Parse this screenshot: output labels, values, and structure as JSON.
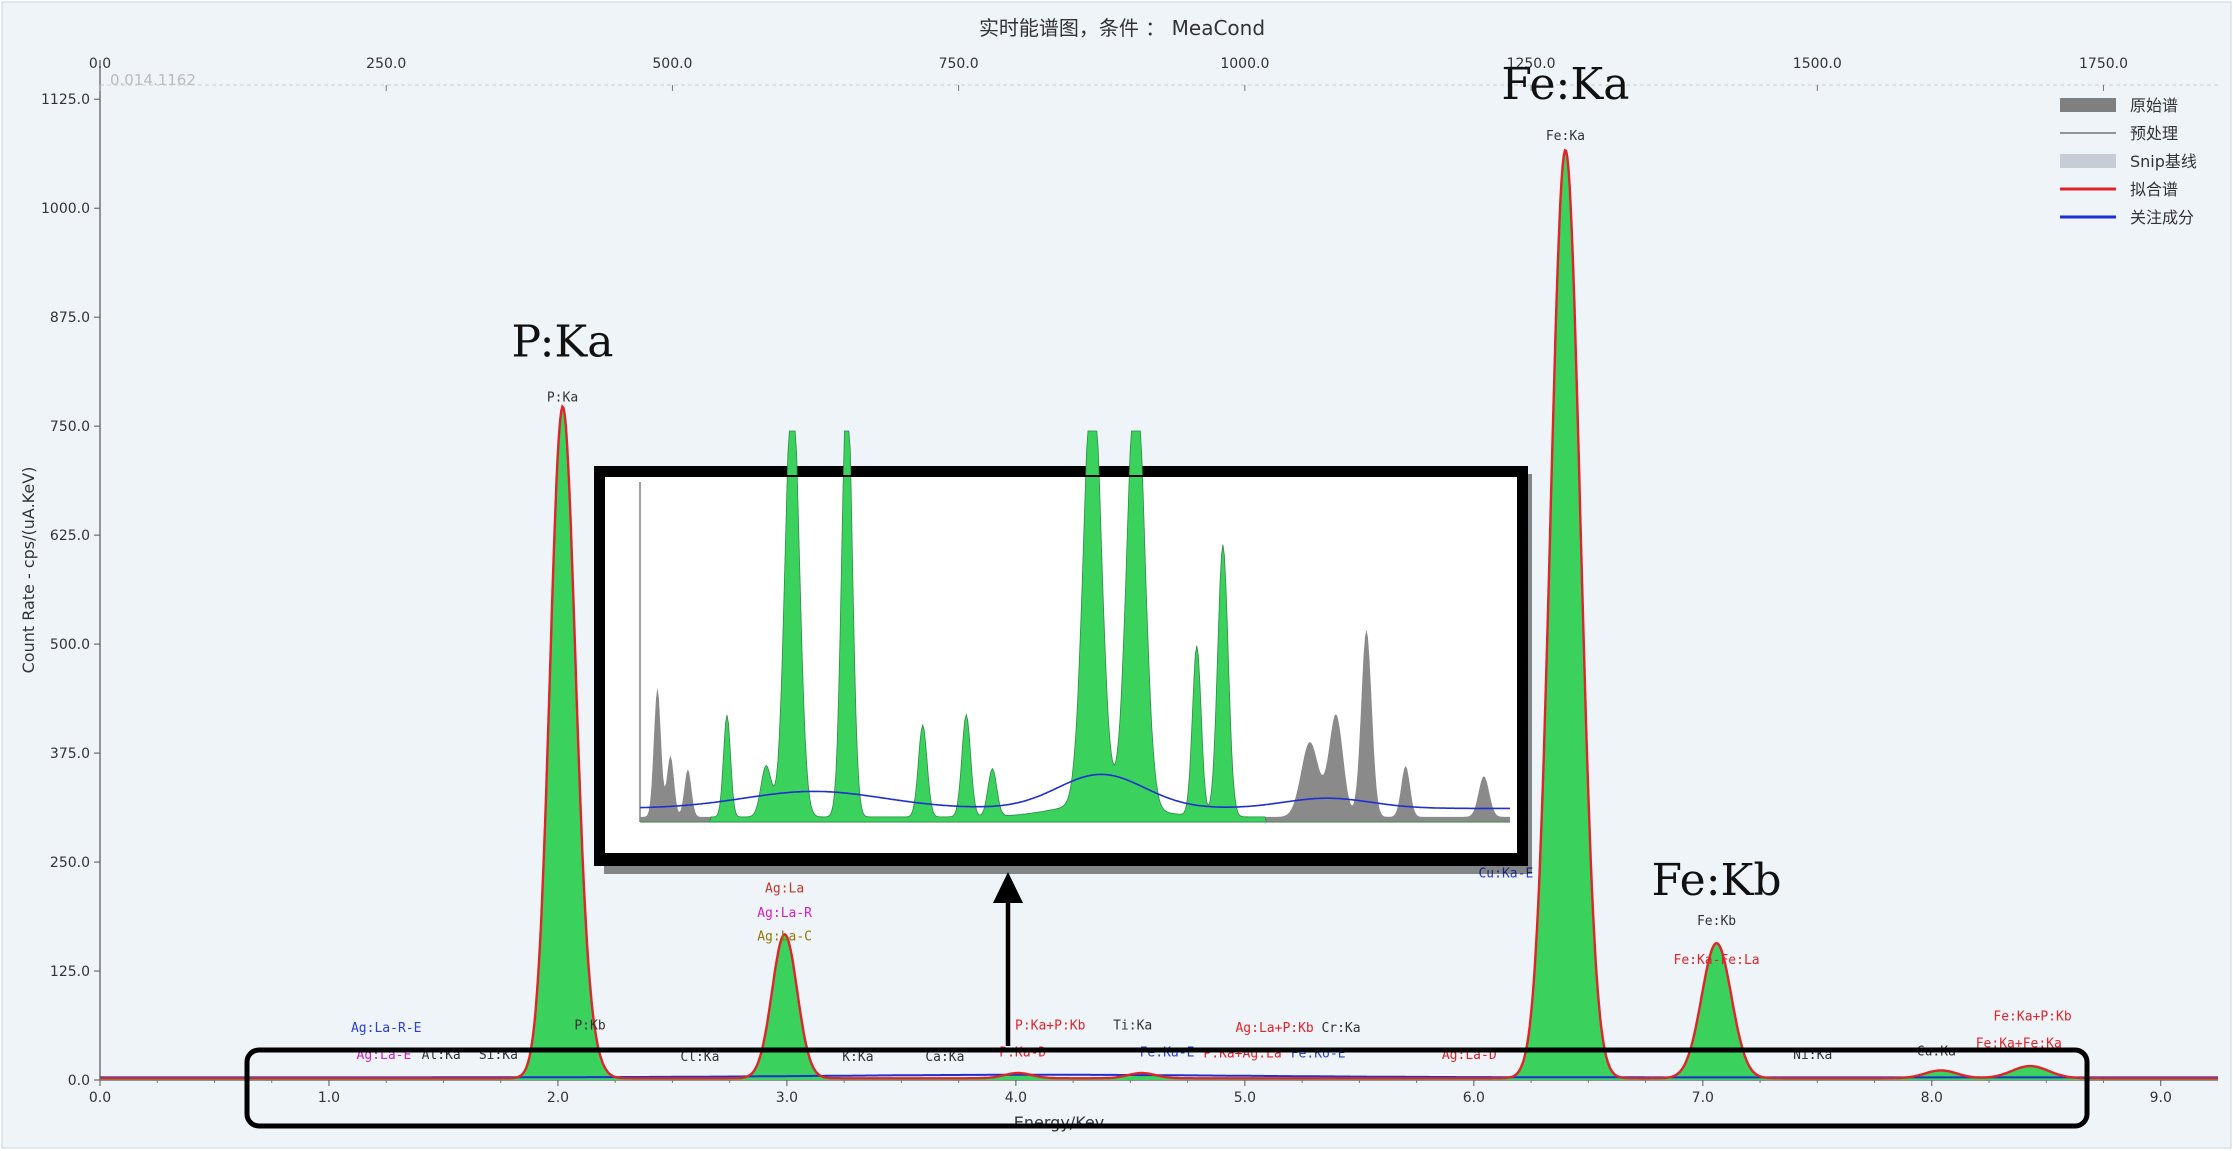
{
  "chart_title": "实时能谱图，条件 ： MeaCond",
  "corner_readout": "0.014.1162",
  "colors": {
    "background": "#eff4f9",
    "fill": "#3ad15c",
    "fit": "#e0242a",
    "raw": "#8a8a8a",
    "focus": "#1f2fd0",
    "highlight_box": "#000000"
  },
  "chart_data": {
    "type": "line",
    "title": "实时能谱图，条件 ： MeaCond",
    "xlabel": "Energy/Kev",
    "ylabel": "Count Rate - cps/(uA.KeV)",
    "xlim": [
      0.0,
      9.25
    ],
    "ylim": [
      0,
      1170
    ],
    "x_ticks": [
      0.0,
      1.0,
      2.0,
      3.0,
      4.0,
      5.0,
      6.0,
      7.0,
      8.0,
      9.0
    ],
    "x_tick_labels": [
      "0.0",
      "1.0",
      "2.0",
      "3.0",
      "4.0",
      "5.0",
      "6.0",
      "7.0",
      "8.0",
      "9.0"
    ],
    "y_ticks": [
      0,
      125,
      250,
      375,
      500,
      625,
      750,
      875,
      1000,
      1125
    ],
    "y_tick_labels": [
      "0.0",
      "125.0",
      "250.0",
      "375.0",
      "500.0",
      "625.0",
      "750.0",
      "875.0",
      "1000.0",
      "1125.0"
    ],
    "top_axis": {
      "range": [
        0,
        1850
      ],
      "ticks": [
        0,
        250,
        500,
        750,
        1000,
        1250,
        1500,
        1750
      ],
      "tick_labels": [
        "0.0",
        "250.0",
        "500.0",
        "750.0",
        "1000.0",
        "1250.0",
        "1500.0",
        "1750.0"
      ]
    },
    "grid": false,
    "legend_position": "top-right",
    "legend": [
      {
        "label": "原始谱",
        "style": "gray-fill"
      },
      {
        "label": "预处理",
        "style": "thin-line"
      },
      {
        "label": "Snip基线",
        "style": "light-fill"
      },
      {
        "label": "拟合谱",
        "style": "red-line"
      },
      {
        "label": "关注成分",
        "style": "blue-line"
      }
    ],
    "peaks": [
      {
        "energy": 2.02,
        "height": 765,
        "width": 0.055,
        "label": "P:Ka"
      },
      {
        "energy": 2.12,
        "height": 40,
        "width": 0.05,
        "label": "P:Kb"
      },
      {
        "energy": 2.99,
        "height": 165,
        "width": 0.055,
        "label": "Ag:La"
      },
      {
        "energy": 4.01,
        "height": 6,
        "width": 0.06,
        "label": "P:Ka-D"
      },
      {
        "energy": 4.55,
        "height": 6,
        "width": 0.06,
        "label": "Fe:Ka-E"
      },
      {
        "energy": 6.4,
        "height": 1065,
        "width": 0.065,
        "label": "Fe:Ka"
      },
      {
        "energy": 7.06,
        "height": 155,
        "width": 0.065,
        "label": "Fe:Kb"
      },
      {
        "energy": 8.04,
        "height": 9,
        "width": 0.07,
        "label": "Cu:Ka"
      },
      {
        "energy": 8.43,
        "height": 14,
        "width": 0.08,
        "label": "Fe:Ka+Fe:Ka"
      }
    ],
    "big_labels": [
      {
        "text": "P:Ka",
        "energy": 2.02,
        "y": 830
      },
      {
        "text": "Fe:Ka",
        "energy": 6.4,
        "y": 1125
      },
      {
        "text": "Fe:Kb",
        "energy": 7.06,
        "y": 212
      }
    ],
    "annotations": [
      {
        "text": "P:Ka",
        "energy": 2.02,
        "y": 778,
        "color": "#333333"
      },
      {
        "text": "Fe:Ka",
        "energy": 6.4,
        "y": 1078,
        "color": "#333333"
      },
      {
        "text": "Ag:La",
        "energy": 2.99,
        "y": 215,
        "color": "#c0392b"
      },
      {
        "text": "Ag:La-R",
        "energy": 2.99,
        "y": 187,
        "color": "#d020c8"
      },
      {
        "text": "Ag:La-C",
        "energy": 2.99,
        "y": 160,
        "color": "#8f7a00"
      },
      {
        "text": "Cu:Ka-E",
        "energy": 6.14,
        "y": 232,
        "color": "#2b3fd0"
      },
      {
        "text": "Fe:Kb",
        "energy": 7.06,
        "y": 178,
        "color": "#333333"
      },
      {
        "text": "Fe:Ka-Fe:La",
        "energy": 7.06,
        "y": 133,
        "color": "#e0242a"
      },
      {
        "text": "Ag:La-R-E",
        "energy": 1.25,
        "y": 55,
        "color": "#2b3fd0"
      },
      {
        "text": "Ag:La-E",
        "energy": 1.24,
        "y": 24,
        "color": "#d020c8"
      },
      {
        "text": "Al:Ka",
        "energy": 1.49,
        "y": 24,
        "color": "#333333"
      },
      {
        "text": "Si:Ka",
        "energy": 1.74,
        "y": 24,
        "color": "#333333"
      },
      {
        "text": "P:Kb",
        "energy": 2.14,
        "y": 58,
        "color": "#333333"
      },
      {
        "text": "Cl:Ka",
        "energy": 2.62,
        "y": 22,
        "color": "#333333"
      },
      {
        "text": "K:Ka",
        "energy": 3.31,
        "y": 22,
        "color": "#333333"
      },
      {
        "text": "Ca:Ka",
        "energy": 3.69,
        "y": 22,
        "color": "#333333"
      },
      {
        "text": "P:Ka+P:Kb",
        "energy": 4.15,
        "y": 58,
        "color": "#e0242a"
      },
      {
        "text": "P:Ka-D",
        "energy": 4.03,
        "y": 27,
        "color": "#e0242a"
      },
      {
        "text": "Ti:Ka",
        "energy": 4.51,
        "y": 58,
        "color": "#333333"
      },
      {
        "text": "Fe:Ka-E",
        "energy": 4.66,
        "y": 27,
        "color": "#2b3fd0"
      },
      {
        "text": "Ag:La+P:Kb",
        "energy": 5.13,
        "y": 55,
        "color": "#e0242a"
      },
      {
        "text": "Cr:Ka",
        "energy": 5.42,
        "y": 55,
        "color": "#333333"
      },
      {
        "text": "P:Ka+Ag:La",
        "energy": 4.99,
        "y": 26,
        "color": "#e0242a"
      },
      {
        "text": "Fe:Ko-E",
        "energy": 5.32,
        "y": 26,
        "color": "#2b3fd0"
      },
      {
        "text": "Ag:La-D",
        "energy": 5.98,
        "y": 24,
        "color": "#e0242a"
      },
      {
        "text": "Ni:Ka",
        "energy": 7.48,
        "y": 24,
        "color": "#333333"
      },
      {
        "text": "Cu:Ka",
        "energy": 8.02,
        "y": 28,
        "color": "#333333"
      },
      {
        "text": "Fe:Ka+P:Kb",
        "energy": 8.44,
        "y": 68,
        "color": "#e0242a"
      },
      {
        "text": "Fe:Ka+Fe:Ka",
        "energy": 8.38,
        "y": 37,
        "color": "#e0242a"
      }
    ]
  }
}
